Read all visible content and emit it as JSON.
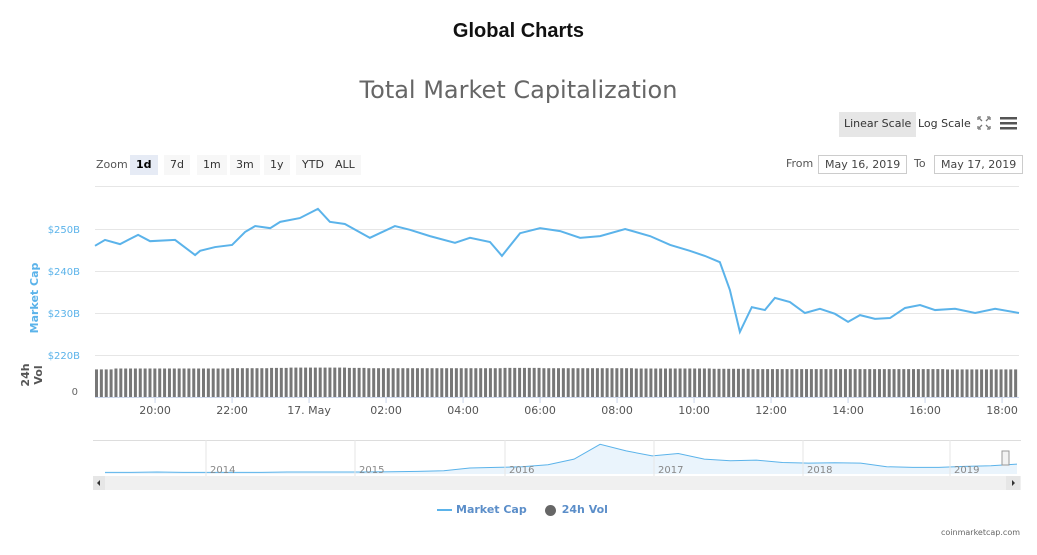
{
  "page_title": "Global Charts",
  "toolbar": {
    "linear": "Linear Scale",
    "log": "Log Scale",
    "zoom_label": "Zoom",
    "zoom_options": [
      "1d",
      "7d",
      "1m",
      "3m",
      "1y",
      "YTD",
      "ALL"
    ],
    "from_label": "From",
    "from": "May 16, 2019",
    "to_label": "To",
    "to": "May 17, 2019"
  },
  "credit": "coinmarketcap.com",
  "chart_data": {
    "type": "line",
    "title": "Total Market Capitalization",
    "ylabel": "Market Cap",
    "ylabel2": "24h Vol",
    "yticks": [
      "$250B",
      "$240B",
      "$230B",
      "$220B"
    ],
    "ytick_values": [
      250,
      240,
      230,
      220
    ],
    "ylim": [
      220,
      257
    ],
    "vol_tick": "0",
    "x_unit": "hours since May 16 18:27",
    "xlim": [
      0,
      24
    ],
    "xticks": [
      {
        "label": "20:00",
        "h": 1.56
      },
      {
        "label": "22:00",
        "h": 3.56
      },
      {
        "label": "17. May",
        "h": 5.56
      },
      {
        "label": "02:00",
        "h": 7.56
      },
      {
        "label": "04:00",
        "h": 9.56
      },
      {
        "label": "06:00",
        "h": 11.56
      },
      {
        "label": "08:00",
        "h": 13.56
      },
      {
        "label": "10:00",
        "h": 15.56
      },
      {
        "label": "12:00",
        "h": 17.56
      },
      {
        "label": "14:00",
        "h": 19.56
      },
      {
        "label": "16:00",
        "h": 21.56
      },
      {
        "label": "18:00",
        "h": 23.56
      }
    ],
    "series": [
      {
        "name": "Market Cap",
        "color": "#5bb3ea",
        "x": [
          0,
          0.26,
          0.65,
          1.12,
          1.43,
          2.08,
          2.6,
          2.73,
          3.12,
          3.56,
          3.9,
          4.16,
          4.55,
          4.81,
          5.32,
          5.79,
          6.1,
          6.49,
          7.14,
          7.79,
          8.18,
          8.7,
          9.35,
          9.74,
          10.26,
          10.57,
          11.04,
          11.56,
          12.08,
          12.6,
          13.12,
          13.77,
          14.42,
          14.94,
          15.45,
          15.84,
          16.23,
          16.49,
          16.75,
          17.06,
          17.4,
          17.66,
          18.05,
          18.44,
          18.83,
          19.22,
          19.56,
          19.87,
          20.26,
          20.65,
          21.04,
          21.43,
          21.82,
          22.34,
          22.86,
          23.38,
          24
        ],
        "values": [
          246.0,
          247.4,
          246.4,
          248.6,
          247.1,
          247.4,
          243.8,
          244.8,
          245.7,
          246.2,
          249.3,
          250.7,
          250.2,
          251.7,
          252.6,
          254.8,
          251.7,
          251.2,
          247.9,
          250.7,
          249.8,
          248.3,
          246.7,
          247.9,
          246.9,
          243.6,
          249.0,
          250.2,
          249.5,
          247.9,
          248.3,
          250.0,
          248.3,
          246.2,
          244.8,
          243.6,
          242.1,
          235.5,
          225.5,
          231.4,
          230.7,
          233.6,
          232.6,
          230.0,
          231.0,
          229.8,
          227.9,
          229.5,
          228.6,
          228.8,
          231.2,
          231.9,
          230.7,
          231.0,
          230.0,
          231.0,
          230.0
        ]
      },
      {
        "name": "24h Vol",
        "color": "#666666",
        "values": [
          0.92,
          0.95,
          0.95,
          0.95,
          0.95,
          0.95,
          0.95,
          0.96,
          0.96,
          0.97,
          0.98,
          0.98,
          0.98,
          0.97,
          0.96,
          0.96,
          0.96,
          0.96,
          0.96,
          0.96,
          0.96,
          0.97,
          0.97,
          0.96,
          0.96,
          0.96,
          0.96,
          0.96,
          0.95,
          0.95,
          0.95,
          0.95,
          0.94,
          0.94,
          0.93,
          0.93,
          0.93,
          0.93,
          0.93,
          0.93,
          0.93,
          0.93,
          0.93,
          0.93,
          0.92,
          0.92,
          0.92,
          0.92
        ]
      }
    ],
    "navigator": {
      "labels": [
        "2014",
        "2015",
        "2016",
        "2017",
        "2018",
        "2019"
      ],
      "values": [
        0.05,
        0.05,
        0.06,
        0.05,
        0.05,
        0.05,
        0.05,
        0.06,
        0.06,
        0.06,
        0.06,
        0.07,
        0.08,
        0.1,
        0.18,
        0.2,
        0.22,
        0.28,
        0.45,
        0.9,
        0.7,
        0.55,
        0.62,
        0.45,
        0.4,
        0.42,
        0.35,
        0.33,
        0.34,
        0.33,
        0.22,
        0.2,
        0.2,
        0.23,
        0.25,
        0.3
      ]
    }
  }
}
